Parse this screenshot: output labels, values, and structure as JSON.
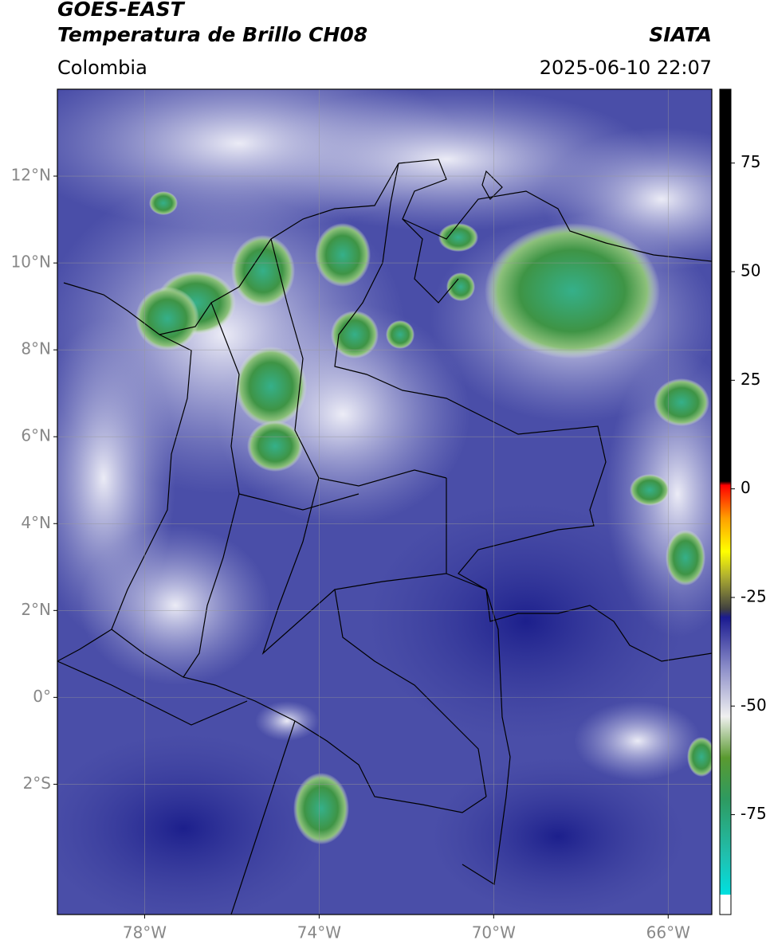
{
  "header": {
    "title": "GOES-EAST",
    "subtitle": "Temperatura de Brillo CH08",
    "source": "SIATA",
    "region": "Colombia",
    "datetime": "2025-06-10 22:07"
  },
  "chart_data": {
    "type": "map",
    "xlim": [
      -80,
      -65
    ],
    "ylim": [
      -5,
      14
    ],
    "xticks": [
      {
        "value": -78,
        "label": "78°W"
      },
      {
        "value": -74,
        "label": "74°W"
      },
      {
        "value": -70,
        "label": "70°W"
      },
      {
        "value": -66,
        "label": "66°W"
      }
    ],
    "yticks": [
      {
        "value": 12,
        "label": "12°N"
      },
      {
        "value": 10,
        "label": "10°N"
      },
      {
        "value": 8,
        "label": "8°N"
      },
      {
        "value": 6,
        "label": "6°N"
      },
      {
        "value": 4,
        "label": "4°N"
      },
      {
        "value": 2,
        "label": "2°N"
      },
      {
        "value": 0,
        "label": "0°"
      },
      {
        "value": -2,
        "label": "2°S"
      }
    ],
    "grid": true,
    "colorbar": {
      "clim": [
        -98,
        92
      ],
      "ticks": [
        75,
        50,
        25,
        0,
        -25,
        -50,
        -75
      ]
    }
  }
}
